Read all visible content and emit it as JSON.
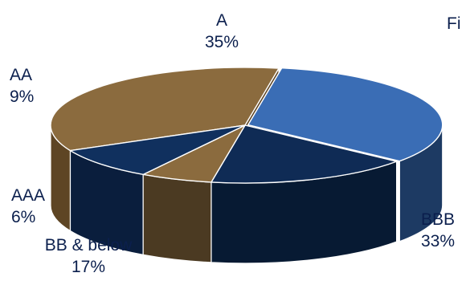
{
  "title_fragment": "Fi",
  "chart_data": {
    "type": "pie",
    "style": "3d-exploded-slice",
    "slices": [
      {
        "label": "A",
        "value": 35,
        "display": "35%",
        "color": "#8b6b3e",
        "side_color": "#5e4524"
      },
      {
        "label": "BBB",
        "value": 33,
        "display": "33%",
        "color": "#3a6db5",
        "side_color": "#1d3a63"
      },
      {
        "label": "BB & below",
        "value": 17,
        "display": "17%",
        "color": "#0f2b55",
        "side_color": "#071a33"
      },
      {
        "label": "AAA",
        "value": 6,
        "display": "6%",
        "color": "#8b6b3e",
        "side_color": "#4b3a22"
      },
      {
        "label": "AA",
        "value": 9,
        "display": "9%",
        "color": "#10305e",
        "side_color": "#0a1e3d"
      }
    ]
  }
}
